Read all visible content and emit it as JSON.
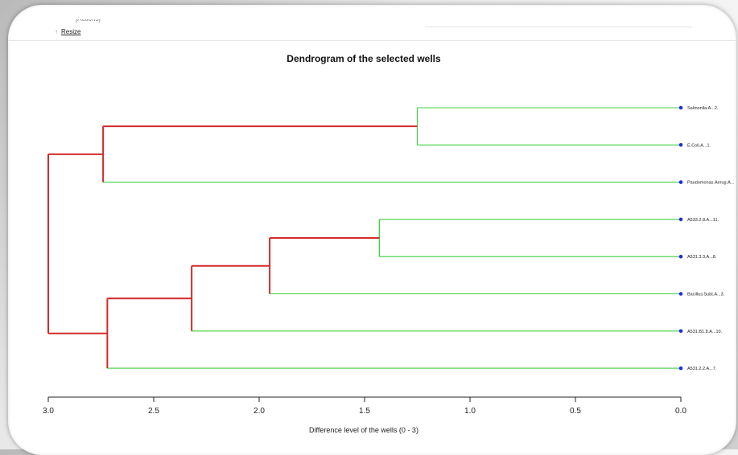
{
  "toolbar": {
    "cut_text": "[Actions]",
    "resize_label": "Resize"
  },
  "colors": {
    "main_branch": "#d42a2a",
    "leaf_branch": "#3fcf3f",
    "leaf_marker": "#1f2fd6"
  },
  "chart_data": {
    "type": "dendrogram",
    "title": "Dendrogram of the selected wells",
    "xlabel": "Difference level of the wells (0 - 3)",
    "ylabel": "",
    "xlim": [
      3.0,
      0.0
    ],
    "xticks": [
      3.0,
      2.5,
      2.0,
      1.5,
      1.0,
      0.5,
      0.0
    ],
    "xtick_labels": [
      "3.0",
      "2.5",
      "2.0",
      "1.5",
      "1.0",
      "0.5",
      "0.0"
    ],
    "grid": false,
    "leaves": [
      "Salmonila.A...2.",
      "E.Coli.A...1.",
      "Paudomonas.Aerug.A...",
      "A533.2.8.A...11.",
      "A531.3.3.A...8.",
      "Bacillus.Subt.A...3.",
      "A531.B1.8.A...10.",
      "A531.2.2.A...7."
    ],
    "merges": [
      {
        "id": "m1",
        "children": [
          "Salmonila.A...2.",
          "E.Coli.A...1."
        ],
        "height": 1.25
      },
      {
        "id": "m2",
        "children": [
          "A533.2.8.A...11.",
          "A531.3.3.A...8."
        ],
        "height": 1.43
      },
      {
        "id": "m3",
        "children": [
          "m2",
          "Bacillus.Subt.A...3."
        ],
        "height": 1.95
      },
      {
        "id": "m4",
        "children": [
          "m3",
          "A531.B1.8.A...10."
        ],
        "height": 2.32
      },
      {
        "id": "m5",
        "children": [
          "m4",
          "A531.2.2.A...7."
        ],
        "height": 2.72
      },
      {
        "id": "m6",
        "children": [
          "m1",
          "Paudomonas.Aerug.A..."
        ],
        "height": 2.74
      },
      {
        "id": "m7",
        "children": [
          "m6",
          "m5"
        ],
        "height": 3.0
      }
    ]
  }
}
